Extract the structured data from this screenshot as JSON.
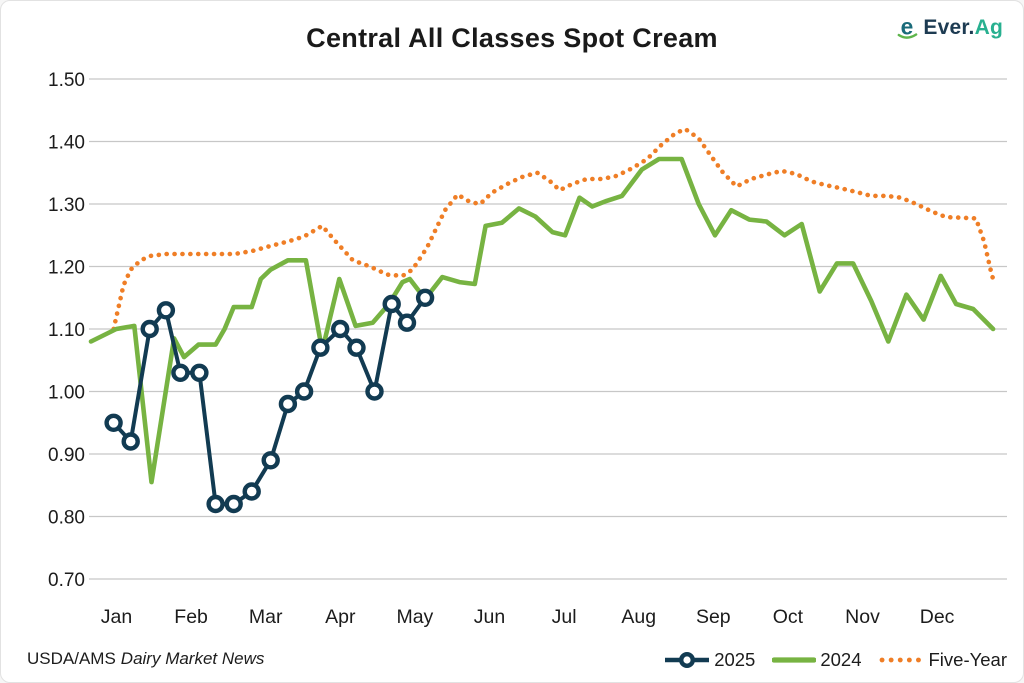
{
  "header": {
    "logo": {
      "brand": "Ever.",
      "suffix": "Ag",
      "icon_letter": "e"
    }
  },
  "footer": {
    "source_prefix": "USDA/AMS",
    "source_name": "Dairy Market News"
  },
  "colors": {
    "navy": "#123b52",
    "green": "#77b342",
    "orange": "#ef7e26",
    "teal_brand": "#1a6b7a",
    "green_brand": "#5eb54c",
    "grid": "#c7c7c7",
    "text": "#1c1c1c"
  },
  "chart_data": {
    "type": "line",
    "title": "Central All Classes Spot Cream",
    "source": "USDA/AMS Dairy Market News",
    "grid": "horizontal",
    "legend_position": "bottom-right",
    "y_axis": {
      "min": 0.7,
      "max": 1.5,
      "step": 0.1,
      "tick_labels": [
        "1.50",
        "1.40",
        "1.30",
        "1.20",
        "1.10",
        "1.00",
        "0.90",
        "0.80",
        "0.70"
      ]
    },
    "x_axis": {
      "categories": [
        "Jan",
        "Feb",
        "Mar",
        "Apr",
        "May",
        "Jun",
        "Jul",
        "Aug",
        "Sep",
        "Oct",
        "Nov",
        "Dec"
      ],
      "note": "weekly observations across the calendar year; t = 0 start of Jan, 1 = end of Dec"
    },
    "series": [
      {
        "name": "2025",
        "color": "#123b52",
        "style": "line+markers",
        "width": 4,
        "points": [
          [
            0.025,
            0.95
          ],
          [
            0.044,
            0.92
          ],
          [
            0.065,
            1.1
          ],
          [
            0.083,
            1.13
          ],
          [
            0.099,
            1.03
          ],
          [
            0.12,
            1.03
          ],
          [
            0.138,
            0.82
          ],
          [
            0.158,
            0.82
          ],
          [
            0.178,
            0.84
          ],
          [
            0.199,
            0.89
          ],
          [
            0.218,
            0.98
          ],
          [
            0.236,
            1.0
          ],
          [
            0.254,
            1.07
          ],
          [
            0.276,
            1.1
          ],
          [
            0.294,
            1.07
          ],
          [
            0.314,
            1.0
          ],
          [
            0.333,
            1.14
          ],
          [
            0.35,
            1.11
          ],
          [
            0.37,
            1.15
          ]
        ]
      },
      {
        "name": "2024",
        "color": "#77b342",
        "style": "line",
        "width": 4.6,
        "points": [
          [
            0.0,
            1.08
          ],
          [
            0.028,
            1.1
          ],
          [
            0.048,
            1.105
          ],
          [
            0.067,
            0.855
          ],
          [
            0.092,
            1.085
          ],
          [
            0.103,
            1.055
          ],
          [
            0.119,
            1.075
          ],
          [
            0.138,
            1.075
          ],
          [
            0.148,
            1.1
          ],
          [
            0.158,
            1.135
          ],
          [
            0.178,
            1.135
          ],
          [
            0.188,
            1.18
          ],
          [
            0.199,
            1.195
          ],
          [
            0.218,
            1.21
          ],
          [
            0.238,
            1.21
          ],
          [
            0.256,
            1.065
          ],
          [
            0.275,
            1.18
          ],
          [
            0.293,
            1.105
          ],
          [
            0.312,
            1.11
          ],
          [
            0.33,
            1.14
          ],
          [
            0.345,
            1.175
          ],
          [
            0.353,
            1.18
          ],
          [
            0.37,
            1.148
          ],
          [
            0.389,
            1.183
          ],
          [
            0.408,
            1.175
          ],
          [
            0.425,
            1.172
          ],
          [
            0.437,
            1.265
          ],
          [
            0.455,
            1.27
          ],
          [
            0.474,
            1.293
          ],
          [
            0.492,
            1.28
          ],
          [
            0.511,
            1.255
          ],
          [
            0.525,
            1.25
          ],
          [
            0.541,
            1.31
          ],
          [
            0.555,
            1.296
          ],
          [
            0.571,
            1.305
          ],
          [
            0.588,
            1.313
          ],
          [
            0.61,
            1.355
          ],
          [
            0.629,
            1.372
          ],
          [
            0.654,
            1.372
          ],
          [
            0.673,
            1.3
          ],
          [
            0.691,
            1.25
          ],
          [
            0.709,
            1.29
          ],
          [
            0.729,
            1.275
          ],
          [
            0.748,
            1.272
          ],
          [
            0.768,
            1.25
          ],
          [
            0.787,
            1.268
          ],
          [
            0.807,
            1.16
          ],
          [
            0.826,
            1.205
          ],
          [
            0.844,
            1.205
          ],
          [
            0.864,
            1.145
          ],
          [
            0.883,
            1.08
          ],
          [
            0.903,
            1.155
          ],
          [
            0.922,
            1.115
          ],
          [
            0.941,
            1.185
          ],
          [
            0.958,
            1.14
          ],
          [
            0.977,
            1.132
          ],
          [
            0.999,
            1.1
          ]
        ]
      },
      {
        "name": "Five-Year",
        "color": "#ef7e26",
        "style": "dotted",
        "width": 4.6,
        "points": [
          [
            0.025,
            1.1
          ],
          [
            0.036,
            1.17
          ],
          [
            0.044,
            1.195
          ],
          [
            0.055,
            1.21
          ],
          [
            0.066,
            1.217
          ],
          [
            0.083,
            1.22
          ],
          [
            0.102,
            1.22
          ],
          [
            0.122,
            1.22
          ],
          [
            0.14,
            1.22
          ],
          [
            0.159,
            1.22
          ],
          [
            0.179,
            1.225
          ],
          [
            0.199,
            1.233
          ],
          [
            0.218,
            1.24
          ],
          [
            0.236,
            1.248
          ],
          [
            0.256,
            1.265
          ],
          [
            0.271,
            1.24
          ],
          [
            0.29,
            1.21
          ],
          [
            0.309,
            1.2
          ],
          [
            0.328,
            1.187
          ],
          [
            0.345,
            1.185
          ],
          [
            0.356,
            1.195
          ],
          [
            0.372,
            1.23
          ],
          [
            0.392,
            1.29
          ],
          [
            0.406,
            1.315
          ],
          [
            0.42,
            1.303
          ],
          [
            0.431,
            1.3
          ],
          [
            0.444,
            1.318
          ],
          [
            0.461,
            1.332
          ],
          [
            0.477,
            1.343
          ],
          [
            0.494,
            1.35
          ],
          [
            0.508,
            1.337
          ],
          [
            0.519,
            1.322
          ],
          [
            0.533,
            1.332
          ],
          [
            0.549,
            1.34
          ],
          [
            0.566,
            1.34
          ],
          [
            0.582,
            1.345
          ],
          [
            0.599,
            1.357
          ],
          [
            0.616,
            1.372
          ],
          [
            0.632,
            1.395
          ],
          [
            0.647,
            1.413
          ],
          [
            0.658,
            1.42
          ],
          [
            0.673,
            1.405
          ],
          [
            0.687,
            1.376
          ],
          [
            0.7,
            1.35
          ],
          [
            0.715,
            1.328
          ],
          [
            0.731,
            1.34
          ],
          [
            0.748,
            1.347
          ],
          [
            0.765,
            1.353
          ],
          [
            0.781,
            1.348
          ],
          [
            0.798,
            1.336
          ],
          [
            0.814,
            1.33
          ],
          [
            0.831,
            1.325
          ],
          [
            0.848,
            1.319
          ],
          [
            0.864,
            1.313
          ],
          [
            0.881,
            1.313
          ],
          [
            0.897,
            1.31
          ],
          [
            0.914,
            1.3
          ],
          [
            0.931,
            1.288
          ],
          [
            0.947,
            1.279
          ],
          [
            0.964,
            1.278
          ],
          [
            0.98,
            1.277
          ],
          [
            0.989,
            1.24
          ],
          [
            0.997,
            1.19
          ],
          [
            1.0,
            1.175
          ]
        ]
      }
    ]
  }
}
